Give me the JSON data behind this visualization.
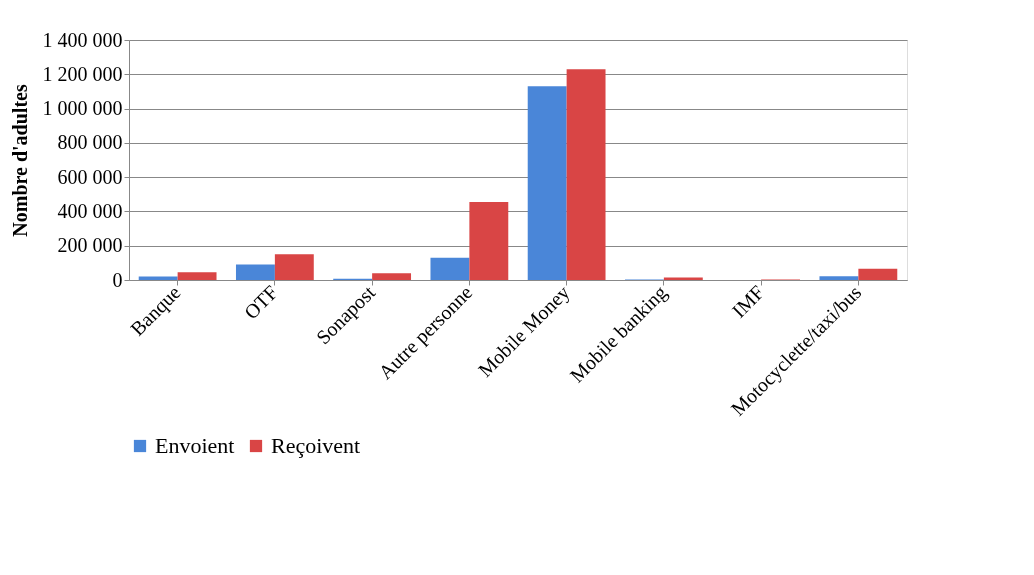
{
  "chart_data": {
    "type": "bar",
    "ylabel": "Nombre d'adultes",
    "categories": [
      "Banque",
      "OTF",
      "Sonapost",
      "Autre  personne",
      "Mobile Money",
      "Mobile banking",
      "IMF",
      "Motocyclette/taxi/bus"
    ],
    "series": [
      {
        "name": "Envoient",
        "color": "#4a86d8",
        "values": [
          20000,
          90000,
          8000,
          130000,
          1130000,
          3000,
          null,
          22000
        ]
      },
      {
        "name": "Reçoivent",
        "color": "#d94545",
        "values": [
          45000,
          150000,
          40000,
          455000,
          1230000,
          15000,
          3000,
          65000
        ]
      }
    ],
    "ylim": [
      0,
      1400000
    ],
    "yticks": [
      {
        "value": 0,
        "label": "0"
      },
      {
        "value": 200000,
        "label": "200 000"
      },
      {
        "value": 400000,
        "label": "400 000"
      },
      {
        "value": 600000,
        "label": "600 000"
      },
      {
        "value": 800000,
        "label": "800 000"
      },
      {
        "value": 1000000,
        "label": "1 000 000"
      },
      {
        "value": 1200000,
        "label": "1 200 000"
      },
      {
        "value": 1400000,
        "label": "1 400 000"
      }
    ],
    "grid": "y",
    "legend": "bottom"
  }
}
